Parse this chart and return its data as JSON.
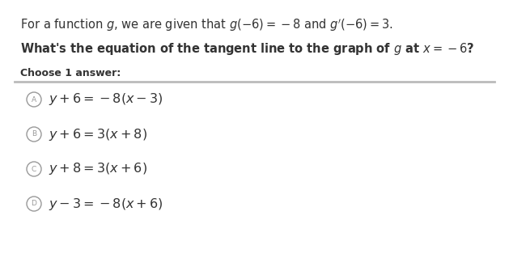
{
  "background_color": "#ffffff",
  "line1_normal": "For a function ",
  "line1_math1": "g",
  "line1_normal2": ", we are given that ",
  "line1_math2": "g(−6) = −8",
  "line1_normal3": " and ",
  "line1_math3": "g'(−6) = 3",
  "line1_normal4": ".",
  "line2_bold1": "What's the equation of the tangent line to the graph of ",
  "line2_math": "g",
  "line2_bold2": " at ",
  "line2_math2": "x = −6",
  "line2_bold3": "?",
  "line3": "Choose 1 answer:",
  "separator_color": "#bbbbbb",
  "options": [
    {
      "label": "A",
      "math": "$y+6=-8(x-3)$"
    },
    {
      "label": "B",
      "math": "$y+6=3(x+8)$"
    },
    {
      "label": "C",
      "math": "$y+8=3(x+6)$"
    },
    {
      "label": "D",
      "math": "$y-3=-8(x+6)$"
    }
  ],
  "circle_color": "#999999",
  "text_color": "#333333",
  "label_color": "#999999",
  "line1_full": "For a function $g$, we are given that $g(-6)=-8$ and $g'(-6)=3$.",
  "line2_full": "What's the equation of the tangent line to the graph of $g$ at $x=-6$?",
  "option_texts": [
    "$y+6=-8(x-3)$",
    "$y+6=3(x+8)$",
    "$y+8=3(x+6)$",
    "$y-3=-8(x+6)$"
  ],
  "option_labels": [
    "A",
    "B",
    "C",
    "D"
  ]
}
